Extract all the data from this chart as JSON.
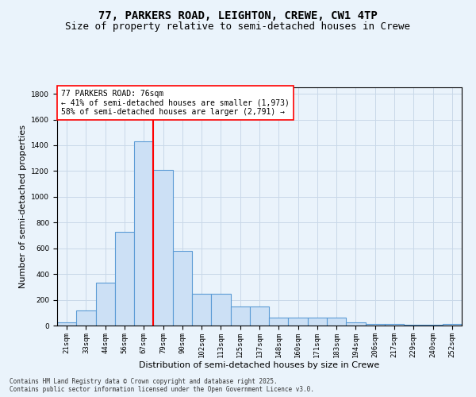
{
  "title1": "77, PARKERS ROAD, LEIGHTON, CREWE, CW1 4TP",
  "title2": "Size of property relative to semi-detached houses in Crewe",
  "xlabel": "Distribution of semi-detached houses by size in Crewe",
  "ylabel": "Number of semi-detached properties",
  "categories": [
    "21sqm",
    "33sqm",
    "44sqm",
    "56sqm",
    "67sqm",
    "79sqm",
    "90sqm",
    "102sqm",
    "113sqm",
    "125sqm",
    "137sqm",
    "148sqm",
    "160sqm",
    "171sqm",
    "183sqm",
    "194sqm",
    "206sqm",
    "217sqm",
    "229sqm",
    "240sqm",
    "252sqm"
  ],
  "values": [
    25,
    115,
    330,
    730,
    1430,
    1210,
    580,
    245,
    245,
    150,
    150,
    60,
    60,
    60,
    60,
    25,
    10,
    10,
    5,
    5,
    10
  ],
  "bar_color": "#cce0f5",
  "bar_edge_color": "#5b9bd5",
  "vline_x_idx": 5,
  "vline_color": "red",
  "annotation_text": "77 PARKERS ROAD: 76sqm\n← 41% of semi-detached houses are smaller (1,973)\n58% of semi-detached houses are larger (2,791) →",
  "annotation_box_color": "white",
  "annotation_box_edge_color": "red",
  "ylim": [
    0,
    1850
  ],
  "yticks": [
    0,
    200,
    400,
    600,
    800,
    1000,
    1200,
    1400,
    1600,
    1800
  ],
  "bg_color": "#eaf3fb",
  "plot_bg_color": "#eaf3fb",
  "grid_color": "#c8d8e8",
  "footer": "Contains HM Land Registry data © Crown copyright and database right 2025.\nContains public sector information licensed under the Open Government Licence v3.0.",
  "title_fontsize": 10,
  "subtitle_fontsize": 9,
  "tick_fontsize": 6.5,
  "label_fontsize": 8,
  "annotation_fontsize": 7,
  "footer_fontsize": 5.5
}
